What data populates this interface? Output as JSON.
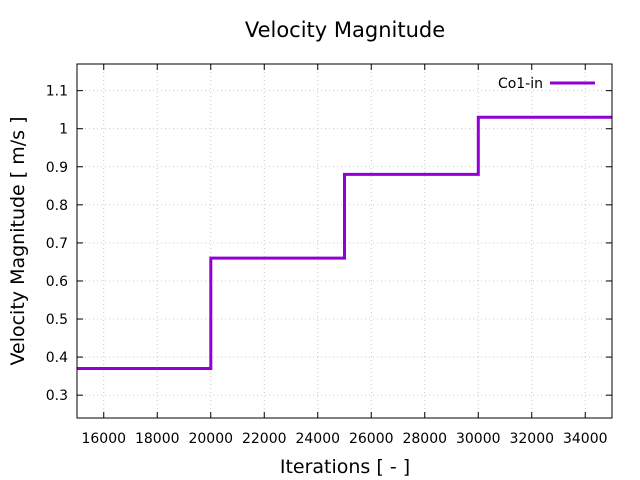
{
  "chart_data": {
    "type": "line",
    "title": "Velocity Magnitude",
    "xlabel": "Iterations [ - ]",
    "ylabel": "Velocity Magnitude [ m/s ]",
    "xlim": [
      15000,
      35000
    ],
    "ylim": [
      0.24,
      1.17
    ],
    "grid": true,
    "legend_position": "top-right",
    "x_ticks": [
      16000,
      18000,
      20000,
      22000,
      24000,
      26000,
      28000,
      30000,
      32000,
      34000
    ],
    "x_tick_labels": [
      "16000",
      "18000",
      "20000",
      "22000",
      "24000",
      "26000",
      "28000",
      "30000",
      "32000",
      "34000"
    ],
    "y_ticks": [
      0.3,
      0.4,
      0.5,
      0.6,
      0.7,
      0.8,
      0.9,
      1.0,
      1.1
    ],
    "y_tick_labels": [
      "0.3",
      "0.4",
      "0.5",
      "0.6",
      "0.7",
      "0.8",
      "0.9",
      "1",
      "1.1"
    ],
    "series": [
      {
        "name": "Co1-in",
        "color": "#9400d3",
        "x": [
          15000,
          20000,
          20000,
          25000,
          25000,
          30000,
          30000,
          35000
        ],
        "y": [
          0.37,
          0.37,
          0.66,
          0.66,
          0.88,
          0.88,
          1.03,
          1.03
        ]
      }
    ]
  }
}
